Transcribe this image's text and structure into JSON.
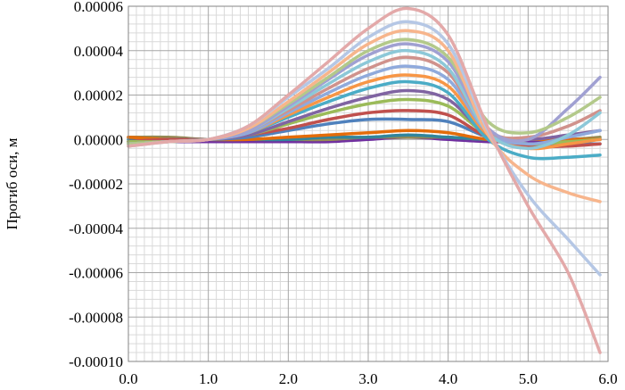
{
  "chart_data": {
    "type": "line",
    "title": "",
    "xlabel": "",
    "ylabel": "Прогиб оси, м",
    "xlim": [
      0,
      6
    ],
    "ylim": [
      -0.0001,
      6e-05
    ],
    "x_ticks": [
      "0.0",
      "1.0",
      "2.0",
      "3.0",
      "4.0",
      "5.0",
      "6.0"
    ],
    "y_ticks": [
      "0.00006",
      "0.00004",
      "0.00002",
      "0.00000",
      "-0.00002",
      "-0.00004",
      "-0.00006",
      "-0.00008",
      "-0.00010"
    ],
    "y_tick_values": [
      6e-05,
      4e-05,
      2e-05,
      0,
      -2e-05,
      -4e-05,
      -6e-05,
      -8e-05,
      -0.0001
    ],
    "grid": true,
    "legend": "none",
    "x": [
      0.0,
      0.5,
      1.0,
      1.5,
      2.0,
      2.5,
      3.0,
      3.5,
      4.0,
      4.5,
      5.0,
      5.5,
      5.9
    ],
    "series": [
      {
        "color": "#e3a9a9",
        "values": [
          -3e-06,
          -1e-06,
          0.0,
          6e-06,
          2e-05,
          3.5e-05,
          5e-05,
          5.9e-05,
          4.7e-05,
          5e-06,
          -3e-05,
          -6e-05,
          -9.6e-05
        ]
      },
      {
        "color": "#b5c7e5",
        "values": [
          -3e-06,
          -1e-06,
          0.0,
          6e-06,
          1.9e-05,
          3.2e-05,
          4.6e-05,
          5.3e-05,
          4.3e-05,
          4e-06,
          -2.5e-05,
          -4.5e-05,
          -6.1e-05
        ]
      },
      {
        "color": "#f7b58c",
        "values": [
          -3e-06,
          -1e-06,
          0.0,
          5e-06,
          1.7e-05,
          3e-05,
          4.3e-05,
          4.9e-05,
          4e-05,
          2e-06,
          -1.6e-05,
          -2.4e-05,
          -2.8e-05
        ]
      },
      {
        "color": "#b3c98a",
        "values": [
          -2e-06,
          -1e-06,
          0.0,
          5e-06,
          1.6e-05,
          2.8e-05,
          4e-05,
          4.5e-05,
          3.7e-05,
          8e-06,
          3e-06,
          1e-05,
          1.9e-05
        ]
      },
      {
        "color": "#a0a0d2",
        "values": [
          -2e-06,
          -1e-06,
          0.0,
          4e-06,
          1.5e-05,
          2.7e-05,
          3.8e-05,
          4.3e-05,
          3.5e-05,
          5e-06,
          0.0,
          1.4e-05,
          2.8e-05
        ]
      },
      {
        "color": "#8cc8d8",
        "values": [
          -2e-06,
          -1e-06,
          0.0,
          4e-06,
          1.4e-05,
          2.5e-05,
          3.5e-05,
          4e-05,
          3.2e-05,
          3e-06,
          -4e-06,
          2e-06,
          1.2e-05
        ]
      },
      {
        "color": "#d0928c",
        "values": [
          -2e-06,
          -1e-06,
          0.0,
          4e-06,
          1.3e-05,
          2.3e-05,
          3.2e-05,
          3.7e-05,
          3e-05,
          4e-06,
          1e-06,
          6e-06,
          1.3e-05
        ]
      },
      {
        "color": "#8faadc",
        "values": [
          -2e-06,
          -1e-06,
          0.0,
          3e-06,
          1.2e-05,
          2.1e-05,
          2.9e-05,
          3.3e-05,
          2.7e-05,
          3e-06,
          -2e-06,
          1e-06,
          4e-06
        ]
      },
      {
        "color": "#f79646",
        "values": [
          -2e-06,
          -1e-06,
          0.0,
          3e-06,
          1.1e-05,
          1.9e-05,
          2.6e-05,
          2.9e-05,
          2.4e-05,
          2e-06,
          -4e-06,
          -2e-06,
          0.0
        ]
      },
      {
        "color": "#4bacc6",
        "values": [
          -2e-06,
          -1e-06,
          0.0,
          3e-06,
          1e-05,
          1.7e-05,
          2.3e-05,
          2.6e-05,
          2.1e-05,
          0.0,
          -8e-06,
          -8e-06,
          -7e-06
        ]
      },
      {
        "color": "#8064a2",
        "values": [
          -2e-06,
          -1e-06,
          0.0,
          2e-06,
          8e-06,
          1.4e-05,
          1.9e-05,
          2.2e-05,
          1.8e-05,
          2e-06,
          0.0,
          2e-06,
          4e-06
        ]
      },
      {
        "color": "#9bbb59",
        "values": [
          -1e-06,
          -1e-06,
          0.0,
          2e-06,
          7e-06,
          1.2e-05,
          1.6e-05,
          1.8e-05,
          1.5e-05,
          2e-06,
          -2e-06,
          -1e-06,
          0.0
        ]
      },
      {
        "color": "#c0504d",
        "values": [
          -1e-06,
          0.0,
          0.0,
          2e-06,
          5e-06,
          9e-06,
          1.2e-05,
          1.3e-05,
          1.1e-05,
          1e-06,
          -3e-06,
          -3e-06,
          -2e-06
        ]
      },
      {
        "color": "#4f81bd",
        "values": [
          -1e-06,
          0.0,
          0.0,
          1e-06,
          4e-06,
          7e-06,
          9e-06,
          9e-06,
          8e-06,
          1e-06,
          -2e-06,
          -2e-06,
          -2e-06
        ]
      },
      {
        "color": "#e36c0a",
        "values": [
          1e-06,
          0.0,
          0.0,
          0.0,
          1e-06,
          2e-06,
          3e-06,
          4e-06,
          3e-06,
          0.0,
          0.0,
          0.0,
          0.0
        ]
      },
      {
        "color": "#31859c",
        "values": [
          0.0,
          0.0,
          0.0,
          0.0,
          0.0,
          1e-06,
          1e-06,
          2e-06,
          1e-06,
          0.0,
          0.0,
          0.0,
          0.0
        ]
      },
      {
        "color": "#948a54",
        "values": [
          1e-06,
          1e-06,
          0.0,
          0.0,
          0.0,
          0.0,
          1e-06,
          1e-06,
          1e-06,
          0.0,
          0.0,
          0.0,
          1e-06
        ]
      },
      {
        "color": "#7030a0",
        "values": [
          -1e-06,
          -1e-06,
          -1e-06,
          -1e-06,
          -1e-06,
          -1e-06,
          0.0,
          1e-06,
          0.0,
          -1e-06,
          -1e-06,
          -1e-06,
          0.0
        ]
      }
    ]
  }
}
